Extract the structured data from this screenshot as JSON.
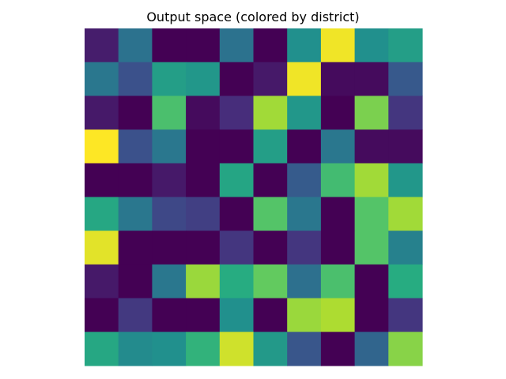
{
  "chart_data": {
    "type": "heatmap",
    "title": "Output space (colored by district)",
    "xlabel": "",
    "ylabel": "",
    "grid": false,
    "axes_visible": false,
    "rows": 10,
    "cols": 10,
    "colormap": "viridis",
    "values": [
      [
        0.08,
        0.38,
        0.0,
        0.0,
        0.38,
        0.0,
        0.5,
        0.98,
        0.5,
        0.56
      ],
      [
        0.4,
        0.25,
        0.56,
        0.53,
        0.0,
        0.07,
        0.98,
        0.03,
        0.03,
        0.28
      ],
      [
        0.07,
        0.0,
        0.71,
        0.03,
        0.13,
        0.86,
        0.53,
        0.0,
        0.8,
        0.16
      ],
      [
        1.0,
        0.25,
        0.4,
        0.0,
        0.0,
        0.56,
        0.0,
        0.4,
        0.03,
        0.03
      ],
      [
        0.0,
        0.0,
        0.07,
        0.0,
        0.59,
        0.0,
        0.29,
        0.69,
        0.86,
        0.53
      ],
      [
        0.6,
        0.4,
        0.22,
        0.19,
        0.0,
        0.73,
        0.4,
        0.0,
        0.73,
        0.86
      ],
      [
        0.96,
        0.0,
        0.0,
        0.0,
        0.16,
        0.0,
        0.16,
        0.0,
        0.73,
        0.44
      ],
      [
        0.07,
        0.0,
        0.4,
        0.85,
        0.62,
        0.76,
        0.37,
        0.71,
        0.0,
        0.62
      ],
      [
        0.0,
        0.17,
        0.0,
        0.0,
        0.5,
        0.0,
        0.85,
        0.88,
        0.0,
        0.16
      ],
      [
        0.6,
        0.48,
        0.5,
        0.65,
        0.93,
        0.54,
        0.27,
        0.0,
        0.33,
        0.82
      ]
    ]
  }
}
